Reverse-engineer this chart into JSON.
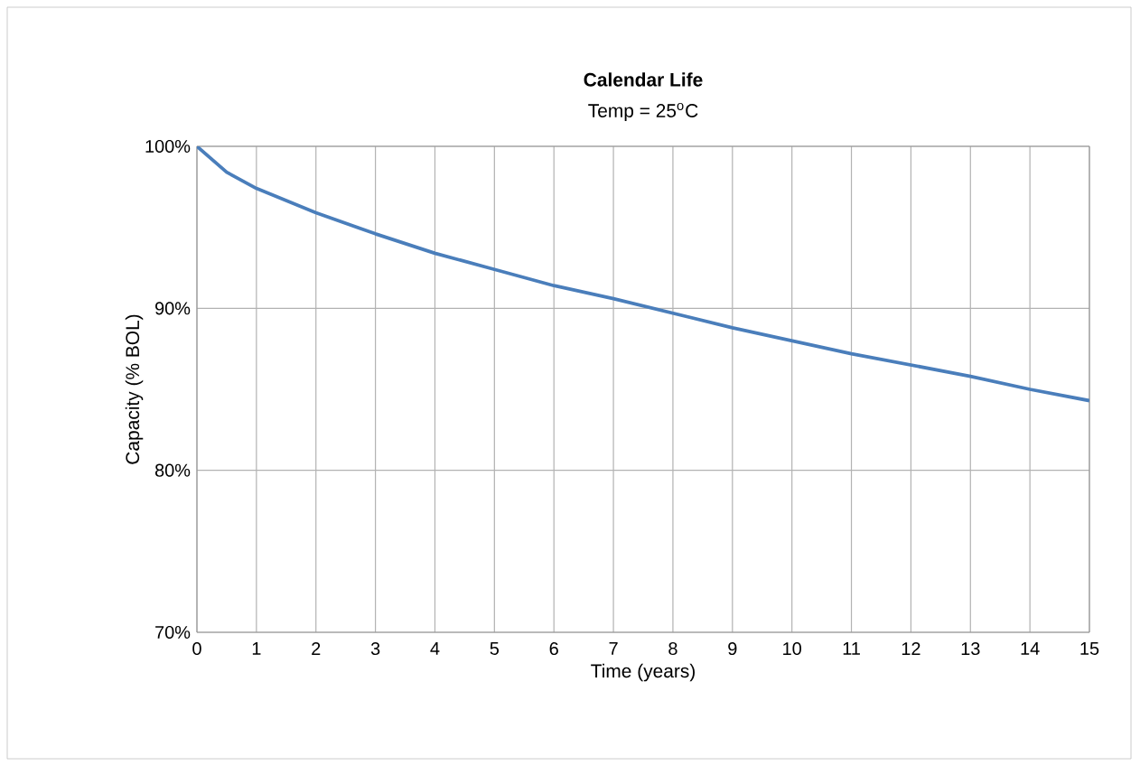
{
  "chart_data": {
    "type": "line",
    "title": "Calendar Life",
    "subtitle": "Temp = 25$^{o}$C",
    "xlabel": "Time (years)",
    "ylabel": "Capacity (% BOL)",
    "x": [
      0,
      0.5,
      1,
      2,
      3,
      4,
      5,
      6,
      7,
      8,
      9,
      10,
      11,
      12,
      13,
      14,
      15
    ],
    "series": [
      {
        "color": "#4a7ebb",
        "values": [
          100,
          98.4,
          97.4,
          95.9,
          94.6,
          93.4,
          92.4,
          91.4,
          90.6,
          89.7,
          88.8,
          88.0,
          87.2,
          86.5,
          85.8,
          85.0,
          84.3
        ]
      }
    ],
    "xlim": [
      0,
      15
    ],
    "xticks": [
      0,
      1,
      2,
      3,
      4,
      5,
      6,
      7,
      8,
      9,
      10,
      11,
      12,
      13,
      14,
      15
    ],
    "ylim": [
      70,
      100
    ],
    "yticks": [
      {
        "value": 70,
        "label": "70%"
      },
      {
        "value": 80,
        "label": "80%"
      },
      {
        "value": 90,
        "label": "90%"
      },
      {
        "value": 100,
        "label": "100%"
      }
    ],
    "grid": true,
    "legend": false,
    "marker": "none",
    "line_style": "solid"
  }
}
